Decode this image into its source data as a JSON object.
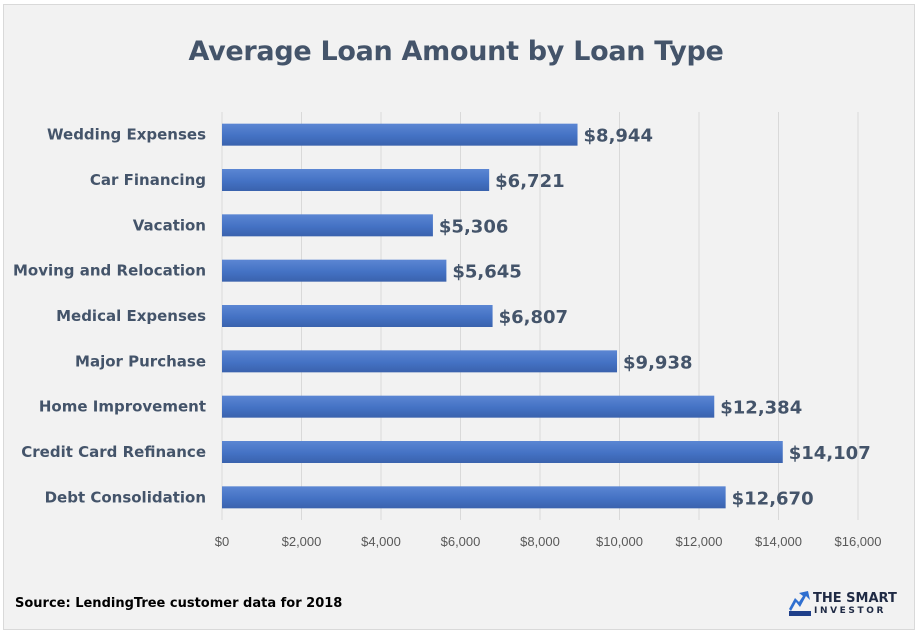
{
  "chart_data": {
    "type": "bar",
    "orientation": "horizontal",
    "title": "Average Loan Amount by Loan Type",
    "categories": [
      "Wedding Expenses",
      "Car Financing",
      "Vacation",
      "Moving and Relocation",
      "Medical Expenses",
      "Major Purchase",
      "Home Improvement",
      "Credit Card Refinance",
      "Debt Consolidation"
    ],
    "values": [
      8944,
      6721,
      5306,
      5645,
      6807,
      9938,
      12384,
      14107,
      12670
    ],
    "data_labels": [
      "$8,944",
      "$6,721",
      "$5,306",
      "$5,645",
      "$6,807",
      "$9,938",
      "$12,384",
      "$14,107",
      "$12,670"
    ],
    "x_ticks": [
      "$0",
      "$2,000",
      "$4,000",
      "$6,000",
      "$8,000",
      "$10,000",
      "$12,000",
      "$14,000",
      "$16,000"
    ],
    "xlim": [
      0,
      16000
    ],
    "grid": true,
    "bar_color": "#4472c4"
  },
  "footer": {
    "source": "Source:  LendingTree customer data for 2018",
    "logo_line1": "THE SMART",
    "logo_line2": "INVESTOR"
  }
}
